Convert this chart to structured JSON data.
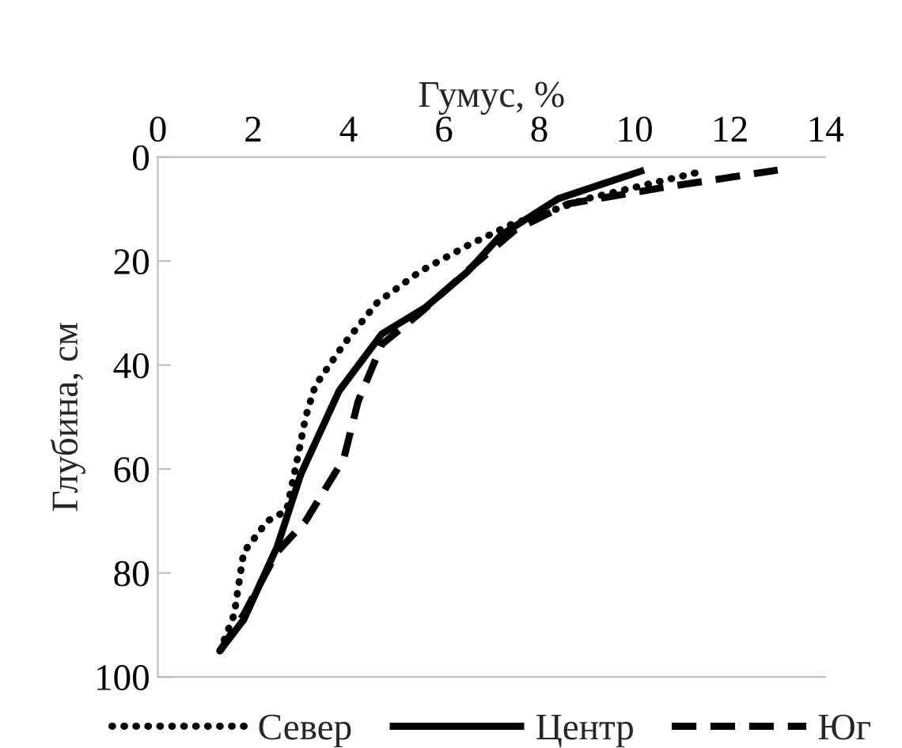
{
  "chart_data": {
    "type": "line",
    "xlabel": "Гумус, %",
    "ylabel": "Глубина, см",
    "xlim": [
      0,
      14
    ],
    "xticks": [
      0,
      2,
      4,
      6,
      8,
      10,
      12,
      14
    ],
    "ylim": [
      100,
      0
    ],
    "yticks": [
      0,
      20,
      40,
      60,
      80,
      100
    ],
    "grid": false,
    "legend": "bottom",
    "marker": "none",
    "series": [
      {
        "name": "Север",
        "color": "#000000",
        "line_style": "dotted",
        "x": [
          1.3,
          1.6,
          1.8,
          2.3,
          2.7,
          2.95,
          3.1,
          3.3,
          3.9,
          4.6,
          5.5,
          6.5,
          7.4,
          9.0,
          11.3
        ],
        "values": [
          95,
          88,
          76,
          70,
          68,
          57,
          50,
          44,
          36,
          28,
          22,
          17,
          13,
          8,
          3
        ]
      },
      {
        "name": "Центр",
        "color": "#000000",
        "line_style": "solid",
        "x": [
          1.3,
          1.8,
          2.5,
          3.0,
          3.8,
          4.7,
          5.6,
          6.5,
          7.2,
          8.4,
          10.2
        ],
        "values": [
          95,
          89,
          75,
          61,
          45,
          34,
          29,
          22,
          15,
          8,
          2.5
        ]
      },
      {
        "name": "Юг",
        "color": "#000000",
        "line_style": "dashed",
        "x": [
          1.3,
          1.8,
          2.5,
          3.1,
          3.9,
          4.2,
          4.7,
          5.5,
          6.6,
          7.5,
          8.6,
          10.5,
          13.0
        ],
        "values": [
          95,
          88,
          76,
          70,
          58,
          47,
          36,
          30,
          21,
          14,
          9,
          6,
          2.5
        ]
      }
    ]
  }
}
